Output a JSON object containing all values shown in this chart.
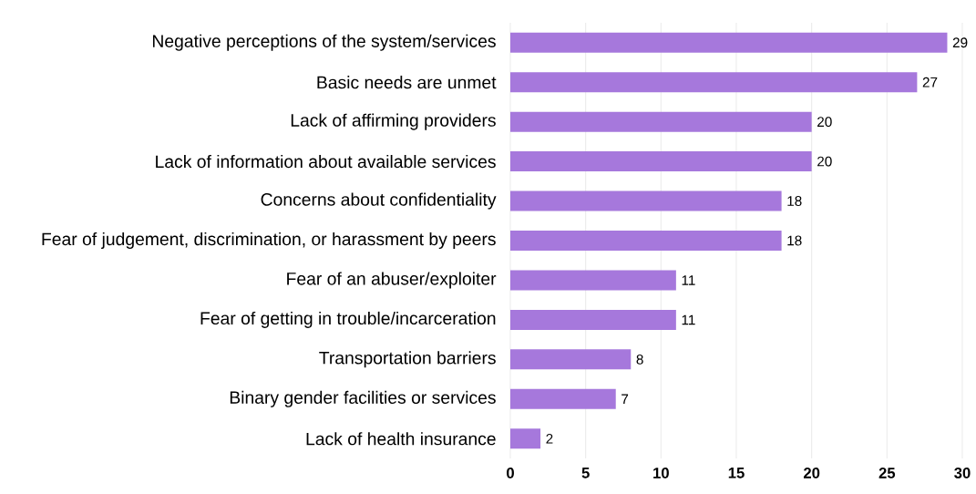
{
  "chart_data": {
    "type": "bar",
    "orientation": "horizontal",
    "categories": [
      "Negative perceptions of the system/services",
      "Basic needs are unmet",
      "Lack of affirming providers",
      "Lack of information about available services",
      "Concerns about confidentiality",
      "Fear of judgement, discrimination, or harassment by peers",
      "Fear of an abuser/exploiter",
      "Fear of getting in trouble/incarceration",
      "Transportation barriers",
      "Binary gender facilities or services",
      "Lack of health insurance"
    ],
    "values": [
      29,
      27,
      20,
      20,
      18,
      18,
      11,
      11,
      8,
      7,
      2
    ],
    "color": "#a678dc",
    "xlim": [
      0,
      30
    ],
    "xticks": [
      0,
      5,
      10,
      15,
      20,
      25,
      30
    ],
    "grid": "x",
    "data_labels": true
  }
}
